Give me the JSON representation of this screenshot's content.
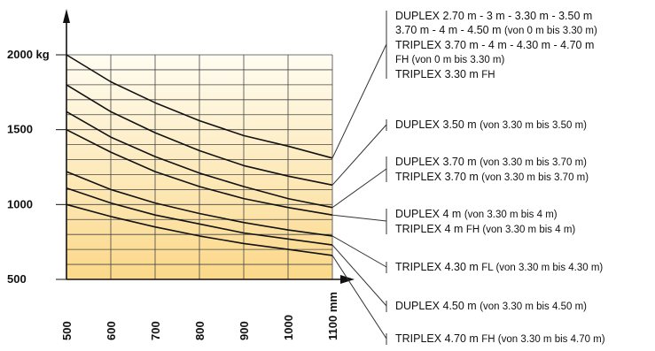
{
  "chart_data": {
    "type": "line",
    "title": "",
    "xlabel": "",
    "ylabel": "",
    "x_unit": "mm",
    "y_unit": "kg",
    "xlim": [
      500,
      1100
    ],
    "ylim": [
      500,
      2000
    ],
    "y_ticks": [
      "2000 kg",
      "1500",
      "1000",
      "500"
    ],
    "x_ticks": [
      "500",
      "600",
      "700",
      "800",
      "900",
      "1000",
      "1100 mm"
    ],
    "grid": true,
    "legend_placement": "right",
    "series": [
      {
        "x": [
          500,
          600,
          700,
          800,
          900,
          1000,
          1100
        ],
        "y": [
          2000,
          1820,
          1680,
          1560,
          1460,
          1390,
          1310
        ]
      },
      {
        "x": [
          500,
          600,
          700,
          800,
          900,
          1000,
          1100
        ],
        "y": [
          1800,
          1620,
          1480,
          1360,
          1260,
          1190,
          1130
        ]
      },
      {
        "x": [
          500,
          600,
          700,
          800,
          900,
          1000,
          1100
        ],
        "y": [
          1620,
          1450,
          1320,
          1210,
          1120,
          1040,
          980
        ]
      },
      {
        "x": [
          500,
          600,
          700,
          800,
          900,
          1000,
          1100
        ],
        "y": [
          1500,
          1350,
          1220,
          1120,
          1040,
          980,
          930
        ]
      },
      {
        "x": [
          500,
          600,
          700,
          800,
          900,
          1000,
          1100
        ],
        "y": [
          1220,
          1100,
          1010,
          940,
          880,
          830,
          790
        ]
      },
      {
        "x": [
          500,
          600,
          700,
          800,
          900,
          1000,
          1100
        ],
        "y": [
          1110,
          1010,
          930,
          870,
          810,
          770,
          730
        ]
      },
      {
        "x": [
          500,
          600,
          700,
          800,
          900,
          1000,
          1100
        ],
        "y": [
          1000,
          920,
          850,
          790,
          740,
          700,
          660
        ]
      }
    ]
  },
  "labels": [
    {
      "lines": [
        [
          {
            "t": "DUPLEX 2.70 m - 3 m - 3.30 m - 3.50 m"
          }
        ],
        [
          {
            "t": "3.70 m - 4 m - 4.50 m "
          },
          {
            "t": "(von 0 m bis 3.30 m)",
            "small": true
          }
        ],
        [
          {
            "t": "TRIPLEX 3.70 m - 4 m - 4.30 m - 4.70 m"
          }
        ],
        [
          {
            "t": "FH ",
            "small": true
          },
          {
            "t": "(von 0 m bis 3.30 m)",
            "small": true
          }
        ],
        [
          {
            "t": "TRIPLEX 3.30 m "
          },
          {
            "t": "FH",
            "small": true
          }
        ]
      ]
    },
    {
      "lines": [
        [
          {
            "t": "DUPLEX 3.50 m "
          },
          {
            "t": "(von 3.30 m bis 3.50 m)",
            "small": true
          }
        ]
      ]
    },
    {
      "lines": [
        [
          {
            "t": "DUPLEX 3.70 m "
          },
          {
            "t": "(von 3.30 m bis 3.70 m)",
            "small": true
          }
        ],
        [
          {
            "t": "TRIPLEX 3.70 m "
          },
          {
            "t": "(von 3.30 m bis 3.70 m)",
            "small": true
          }
        ]
      ]
    },
    {
      "lines": [
        [
          {
            "t": "DUPLEX 4 m "
          },
          {
            "t": "(von 3.30 m bis 4 m)",
            "small": true
          }
        ],
        [
          {
            "t": "TRIPLEX 4 m "
          },
          {
            "t": "FH (von 3.30 m bis 4 m)",
            "small": true
          }
        ]
      ]
    },
    {
      "lines": [
        [
          {
            "t": "TRIPLEX 4.30 m "
          },
          {
            "t": "FL (von 3.30 m bis 4.30 m)",
            "small": true
          }
        ]
      ]
    },
    {
      "lines": [
        [
          {
            "t": "DUPLEX 4.50 m "
          },
          {
            "t": "(von 3.30 m bis 4.50 m)",
            "small": true
          }
        ]
      ]
    },
    {
      "lines": [
        [
          {
            "t": "TRIPLEX 4.70 m "
          },
          {
            "t": "FH (von 3.30 m bis 4.70 m)",
            "small": true
          }
        ]
      ]
    }
  ],
  "colors": {
    "bg_top": "#fffdf2",
    "bg_bottom": "#fbd889",
    "grid": "#444444",
    "curve": "#111111",
    "leader": "#333333"
  }
}
